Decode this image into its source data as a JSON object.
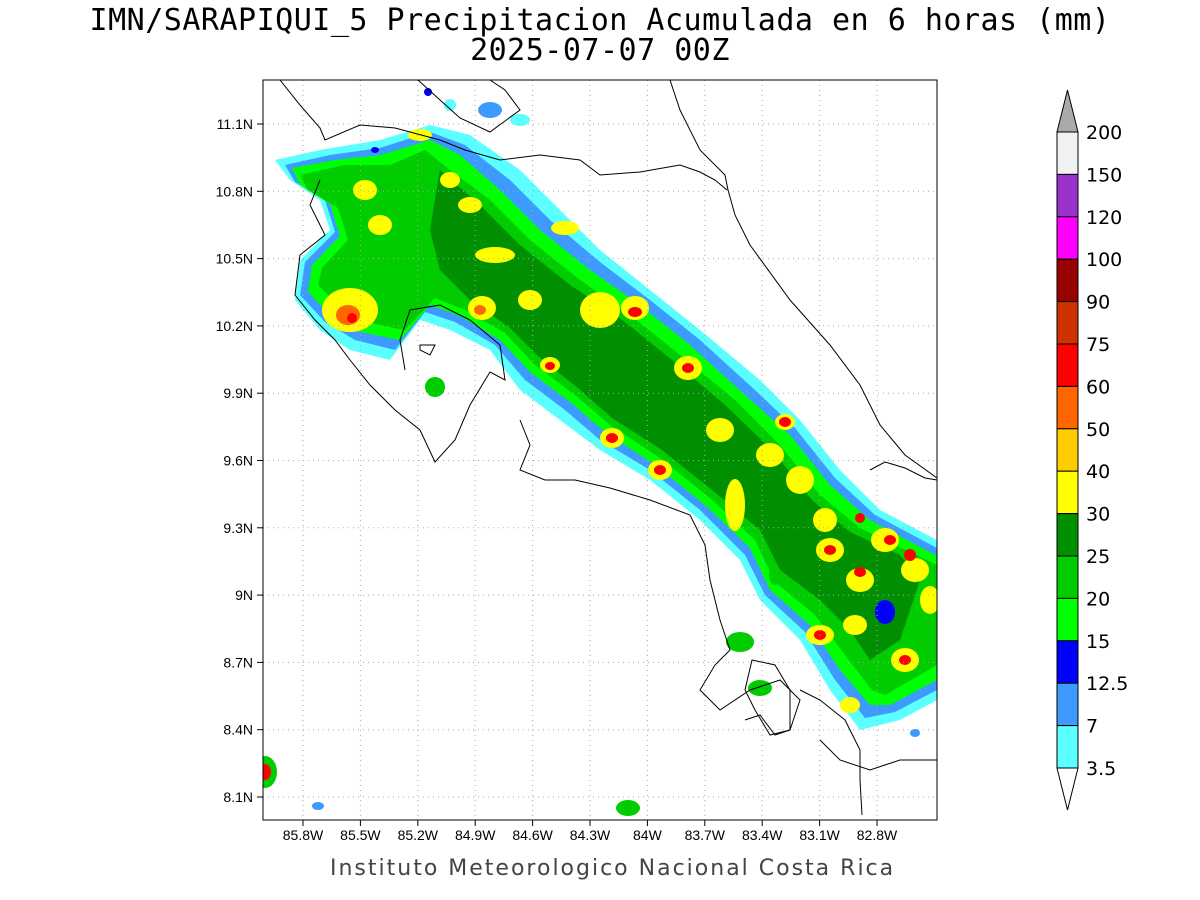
{
  "title_line1": "IMN/SARAPIQUI_5 Precipitacion Acumulada en 6 horas (mm)",
  "title_line2": "2025-07-07 00Z",
  "footer": "Instituto Meteorologico Nacional Costa Rica",
  "lat_labels": [
    "11.1N",
    "10.8N",
    "10.5N",
    "10.2N",
    "9.9N",
    "9.6N",
    "9.3N",
    "9N",
    "8.7N",
    "8.4N",
    "8.1N"
  ],
  "lon_labels": [
    "85.8W",
    "85.5W",
    "85.2W",
    "84.9W",
    "84.6W",
    "84.3W",
    "84W",
    "83.7W",
    "83.4W",
    "83.1W",
    "82.8W"
  ],
  "colorbar": {
    "levels": [
      {
        "label": "3.5",
        "color": "#5cffff"
      },
      {
        "label": "7",
        "color": "#3d9bff"
      },
      {
        "label": "12.5",
        "color": "#0000ff"
      },
      {
        "label": "15",
        "color": "#00ff00"
      },
      {
        "label": "20",
        "color": "#00cc00"
      },
      {
        "label": "25",
        "color": "#008f00"
      },
      {
        "label": "30",
        "color": "#ffff00"
      },
      {
        "label": "40",
        "color": "#ffcc00"
      },
      {
        "label": "50",
        "color": "#ff6600"
      },
      {
        "label": "60",
        "color": "#ff0000"
      },
      {
        "label": "75",
        "color": "#cc3300"
      },
      {
        "label": "90",
        "color": "#990000"
      },
      {
        "label": "100",
        "color": "#ff00ff"
      },
      {
        "label": "120",
        "color": "#9933cc"
      },
      {
        "label": "150",
        "color": "#f2f2f2"
      },
      {
        "label": "200",
        "color": "#aaaaaa"
      }
    ]
  }
}
